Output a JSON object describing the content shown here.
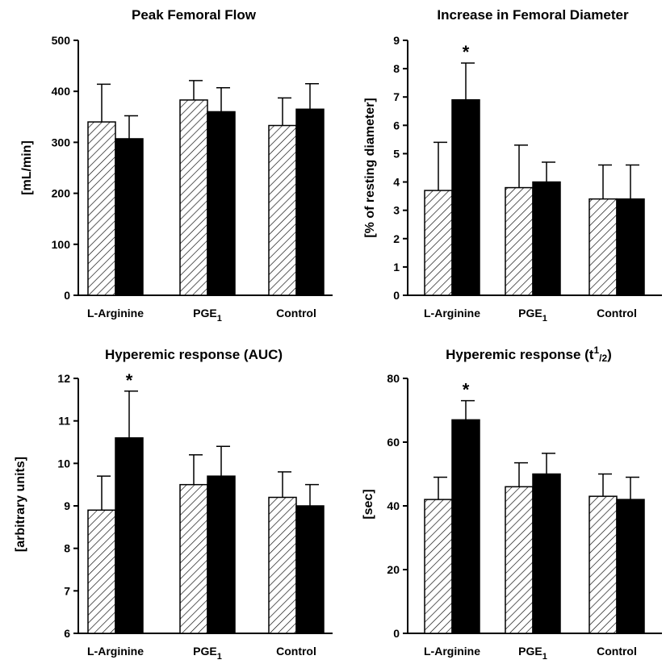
{
  "chart_data": [
    {
      "type": "bar",
      "title": "Peak Femoral Flow",
      "ylabel": "[mL/min]",
      "xlabel": "",
      "ylim": [
        0,
        500
      ],
      "yticks": [
        0,
        100,
        200,
        300,
        400,
        500
      ],
      "categories": [
        "L-Arginine",
        "PGE1",
        "Control"
      ],
      "series": [
        {
          "pattern": "hatched",
          "values": [
            340,
            383,
            333
          ],
          "errors": [
            74,
            38,
            54
          ]
        },
        {
          "pattern": "solid",
          "values": [
            307,
            360,
            365
          ],
          "errors": [
            45,
            47,
            50
          ]
        }
      ],
      "annotations": []
    },
    {
      "type": "bar",
      "title": "Increase in Femoral Diameter",
      "ylabel": "[% of resting diameter]",
      "xlabel": "",
      "ylim": [
        0,
        9
      ],
      "yticks": [
        0,
        1,
        2,
        3,
        4,
        5,
        6,
        7,
        8,
        9
      ],
      "categories": [
        "L-Arginine",
        "PGE1",
        "Control"
      ],
      "series": [
        {
          "pattern": "hatched",
          "values": [
            3.7,
            3.8,
            3.4
          ],
          "errors": [
            1.7,
            1.5,
            1.2
          ]
        },
        {
          "pattern": "solid",
          "values": [
            6.9,
            4.0,
            3.4
          ],
          "errors": [
            1.3,
            0.7,
            1.2
          ]
        }
      ],
      "annotations": [
        {
          "text": "*",
          "category": 0,
          "series": 1
        }
      ]
    },
    {
      "type": "bar",
      "title": "Hyperemic response (AUC)",
      "ylabel": "[arbitrary units]",
      "xlabel": "",
      "ylim": [
        6,
        12
      ],
      "yticks": [
        6,
        7,
        8,
        9,
        10,
        11,
        12
      ],
      "categories": [
        "L-Arginine",
        "PGE1",
        "Control"
      ],
      "series": [
        {
          "pattern": "hatched",
          "values": [
            8.9,
            9.5,
            9.2
          ],
          "errors": [
            0.8,
            0.7,
            0.6
          ]
        },
        {
          "pattern": "solid",
          "values": [
            10.6,
            9.7,
            9.0
          ],
          "errors": [
            1.1,
            0.7,
            0.5
          ]
        }
      ],
      "annotations": [
        {
          "text": "*",
          "category": 0,
          "series": 1
        }
      ]
    },
    {
      "type": "bar",
      "title": "Hyperemic response (t1/2)",
      "ylabel": "[sec]",
      "xlabel": "",
      "ylim": [
        0,
        80
      ],
      "yticks": [
        0,
        20,
        40,
        60,
        80
      ],
      "categories": [
        "L-Arginine",
        "PGE1",
        "Control"
      ],
      "series": [
        {
          "pattern": "hatched",
          "values": [
            42,
            46,
            43
          ],
          "errors": [
            7,
            7.5,
            7
          ]
        },
        {
          "pattern": "solid",
          "values": [
            67,
            50,
            42
          ],
          "errors": [
            6,
            6.5,
            7
          ]
        }
      ],
      "annotations": [
        {
          "text": "*",
          "category": 0,
          "series": 1
        }
      ]
    }
  ],
  "panels": [
    {
      "title_main": "Peak Femoral Flow",
      "title_sup": "",
      "title_sub": "",
      "title_end": ""
    },
    {
      "title_main": "Increase in Femoral Diameter",
      "title_sup": "",
      "title_sub": "",
      "title_end": ""
    },
    {
      "title_main": "Hyperemic response (AUC)",
      "title_sup": "",
      "title_sub": "",
      "title_end": ""
    },
    {
      "title_main": "Hyperemic response (t",
      "title_sup": "1",
      "title_sub": "/2",
      "title_end": ")"
    }
  ],
  "category_labels": [
    {
      "main": "L-Arginine",
      "sub": ""
    },
    {
      "main": "PGE",
      "sub": "1"
    },
    {
      "main": "Control",
      "sub": ""
    }
  ],
  "colors": {
    "solid": "#000000",
    "hatch": "#000000",
    "background": "#ffffff"
  }
}
